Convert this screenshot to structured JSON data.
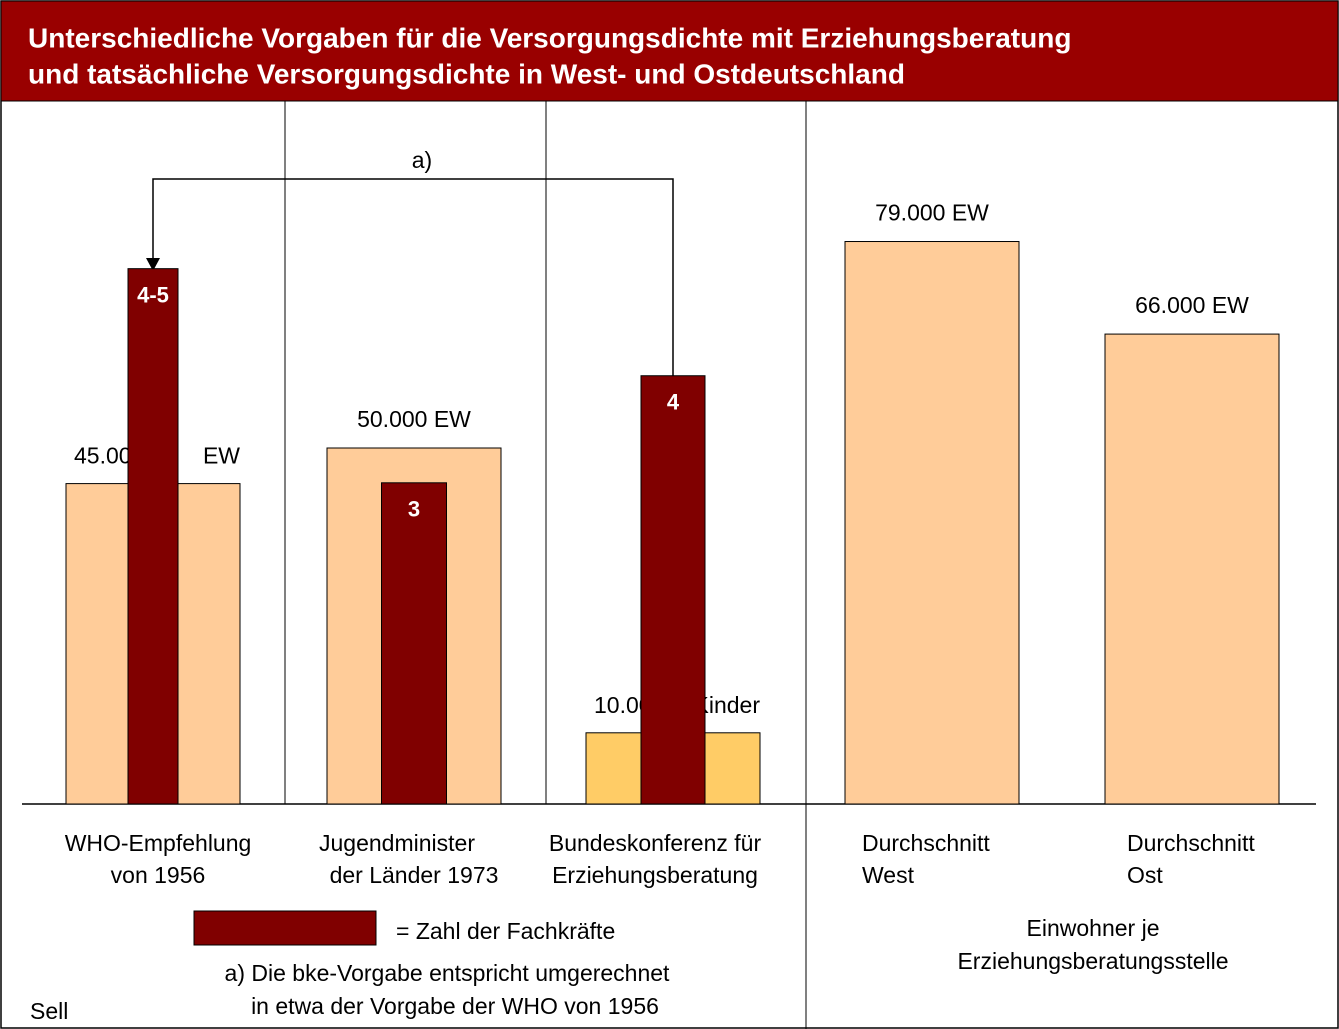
{
  "chart_data": {
    "type": "bar",
    "title": [
      "Unterschiedliche Vorgaben für die Versorgungsdichte mit Erziehungsberatung",
      "und tatsächliche Versorgungsdichte in West- und Ostdeutschland"
    ],
    "categories": [
      [
        "WHO-Empfehlung",
        "von 1956"
      ],
      [
        "Jugendminister",
        "der Länder 1973"
      ],
      [
        "Bundeskonferenz für",
        "Erziehungsberatung"
      ],
      [
        "Durchschnitt",
        "West"
      ],
      [
        "Durchschnitt",
        "Ost"
      ]
    ],
    "ylim": [
      0,
      100000
    ],
    "y2lim": [
      0,
      6.65
    ],
    "series": [
      {
        "colors": [
          "#ffcc99",
          "#ffcc99",
          "#ffcc66",
          "#ffcc99",
          "#ffcc99"
        ],
        "values": [
          45000,
          50000,
          10000,
          79000,
          66000
        ],
        "value_labels": [
          "45.000",
          "50.000 EW",
          "10.000",
          "79.000 EW",
          "66.000 EW"
        ],
        "unit_labels": [
          "EW",
          null,
          "Kinder",
          null,
          null
        ]
      },
      {
        "name": "= Zahl der Fachkräfte",
        "color": "#800000",
        "axis": "y2",
        "values": [
          5,
          3,
          4,
          null,
          null
        ],
        "value_labels": [
          "4-5",
          "3",
          "4",
          null,
          null
        ]
      }
    ],
    "annotation": "a)",
    "footnote": [
      "a) Die bke-Vorgabe entspricht umgerechnet",
      "in etwa der Vorgabe der WHO von 1956"
    ],
    "group_caption": [
      "Einwohner je",
      "Erziehungsberatungsstelle"
    ],
    "source": "Sell"
  }
}
